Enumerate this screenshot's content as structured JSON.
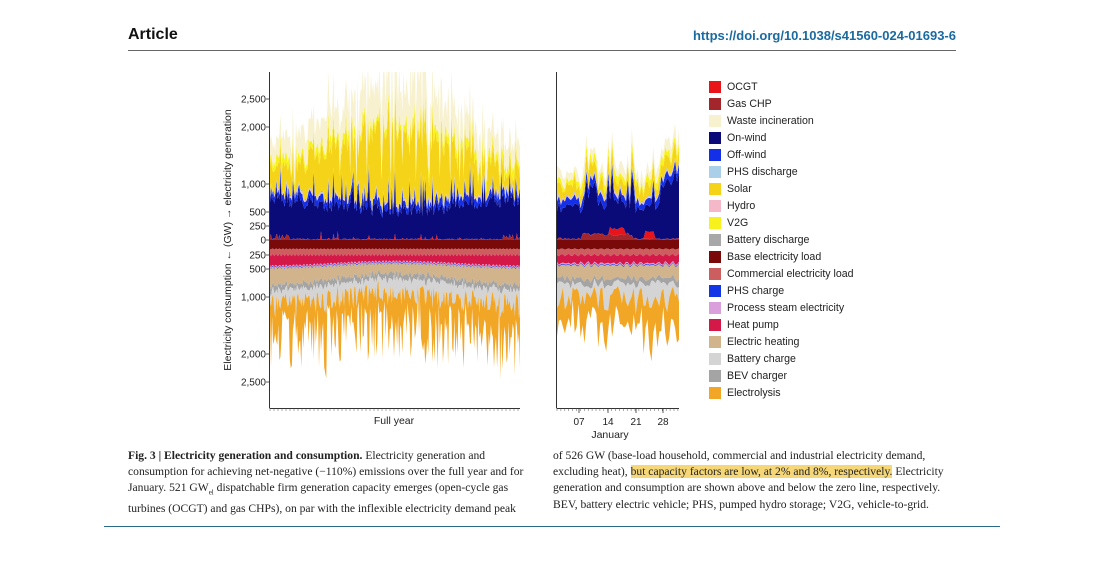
{
  "header": {
    "article_label": "Article",
    "doi": "https://doi.org/10.1038/s41560-024-01693-6"
  },
  "chart_data": {
    "type": "area",
    "ylabel": "Electricity consumption ← (GW) → electricity generation",
    "y_ticks_positive": [
      "2,500",
      "2,000",
      "1,000",
      "500",
      "250",
      "0"
    ],
    "y_ticks_negative": [
      "250",
      "500",
      "1,000",
      "2,000",
      "2,500"
    ],
    "ylim": [
      -2700,
      2700
    ],
    "panels": [
      {
        "name": "full-year",
        "xlabel": "Full year",
        "x_ticks": []
      },
      {
        "name": "january",
        "xlabel": "January",
        "x_ticks": [
          "07",
          "14",
          "21",
          "28"
        ]
      }
    ],
    "generation_series": [
      {
        "name": "OCGT",
        "color": "#e8141a"
      },
      {
        "name": "Gas CHP",
        "color": "#a3262c"
      },
      {
        "name": "Waste incineration",
        "color": "#f7f1cf"
      },
      {
        "name": "On-wind",
        "color": "#0a0a78"
      },
      {
        "name": "Off-wind",
        "color": "#1330e8"
      },
      {
        "name": "PHS discharge",
        "color": "#a9d0e8"
      },
      {
        "name": "Solar",
        "color": "#f5d318"
      },
      {
        "name": "Hydro",
        "color": "#f5b8c8"
      },
      {
        "name": "V2G",
        "color": "#f7f11e"
      },
      {
        "name": "Battery discharge",
        "color": "#a8a8a8"
      }
    ],
    "consumption_series": [
      {
        "name": "Base electricity load",
        "color": "#7a0a0a"
      },
      {
        "name": "Commercial electricity load",
        "color": "#cc5e60"
      },
      {
        "name": "PHS charge",
        "color": "#1236e6"
      },
      {
        "name": "Process steam electricity",
        "color": "#d9a0dc"
      },
      {
        "name": "Heat pump",
        "color": "#d41848"
      },
      {
        "name": "Electric heating",
        "color": "#d2b48c"
      },
      {
        "name": "Battery charge",
        "color": "#d4d4d4"
      },
      {
        "name": "BEV charger",
        "color": "#a4a4a4"
      },
      {
        "name": "Electrolysis",
        "color": "#f2a626"
      }
    ],
    "peaks": {
      "base_load_peak_gw": 526,
      "dispatchable_firm_capacity_gw": 521,
      "ocgt_capacity_factor_pct": 2,
      "gas_chp_capacity_factor_pct": 8
    }
  },
  "caption": {
    "left": {
      "title": "Fig. 3 | Electricity generation and consumption.",
      "line1_rest": " Electricity generation and",
      "line2": "consumption for achieving net-negative (−110%) emissions over the full year and for",
      "line3_pre": "January. 521 GW",
      "line3_sub": "el",
      "line3_post": " dispatchable firm generation capacity emerges (open-cycle gas",
      "line4": "turbines (OCGT) and gas CHPs), on par with the inflexible electricity demand peak"
    },
    "right": {
      "line1": "of 526 GW (base-load household, commercial and industrial electricity demand,",
      "line2_pre": "excluding heat), ",
      "line2_highlight": "but capacity factors are low, at 2% and 8%, respectively.",
      "line2_post": " Electricity",
      "line3": "generation and consumption are shown above and below the zero line, respectively.",
      "line4": "BEV, battery electric vehicle; PHS, pumped hydro storage; V2G, vehicle-to-grid."
    }
  }
}
